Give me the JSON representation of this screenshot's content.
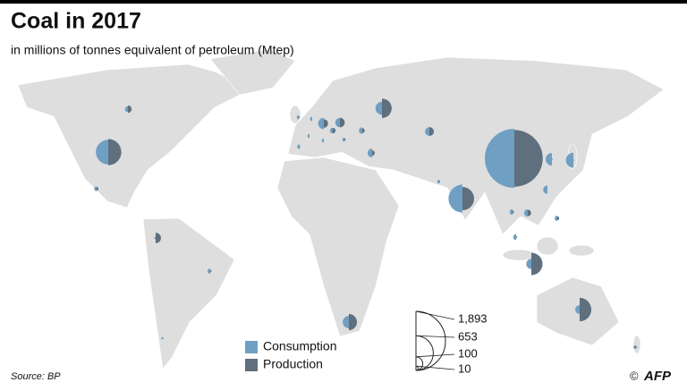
{
  "chart_data": {
    "type": "split-bubble",
    "title": "Coal in 2017",
    "subtitle": "in millions of tonnes equivalent of petroleum (Mtep)",
    "source": "Source: BP",
    "credit": "AFP",
    "copyright": "©",
    "series": [
      {
        "name": "Consumption",
        "color": "#6f9fc2",
        "values": [
          1893,
          332,
          424,
          92,
          43,
          57,
          82,
          121,
          86,
          71,
          48,
          41,
          4,
          25,
          45,
          29,
          19,
          13,
          40,
          18,
          20,
          15,
          16,
          9,
          13,
          10,
          9,
          10,
          8,
          17,
          4,
          6,
          9
        ]
      },
      {
        "name": "Production",
        "color": "#5f6f7d",
        "values": [
          1747,
          371,
          294,
          206,
          297,
          272,
          143,
          1,
          1,
          39,
          50,
          44,
          61,
          13,
          15,
          23,
          30,
          7,
          0,
          4,
          2,
          8,
          3,
          2,
          1,
          0,
          0,
          0,
          2,
          17,
          1,
          5,
          3
        ]
      }
    ],
    "size_legend": [
      {
        "value": 1893,
        "label": "1,893"
      },
      653,
      100,
      10
    ]
  }
}
